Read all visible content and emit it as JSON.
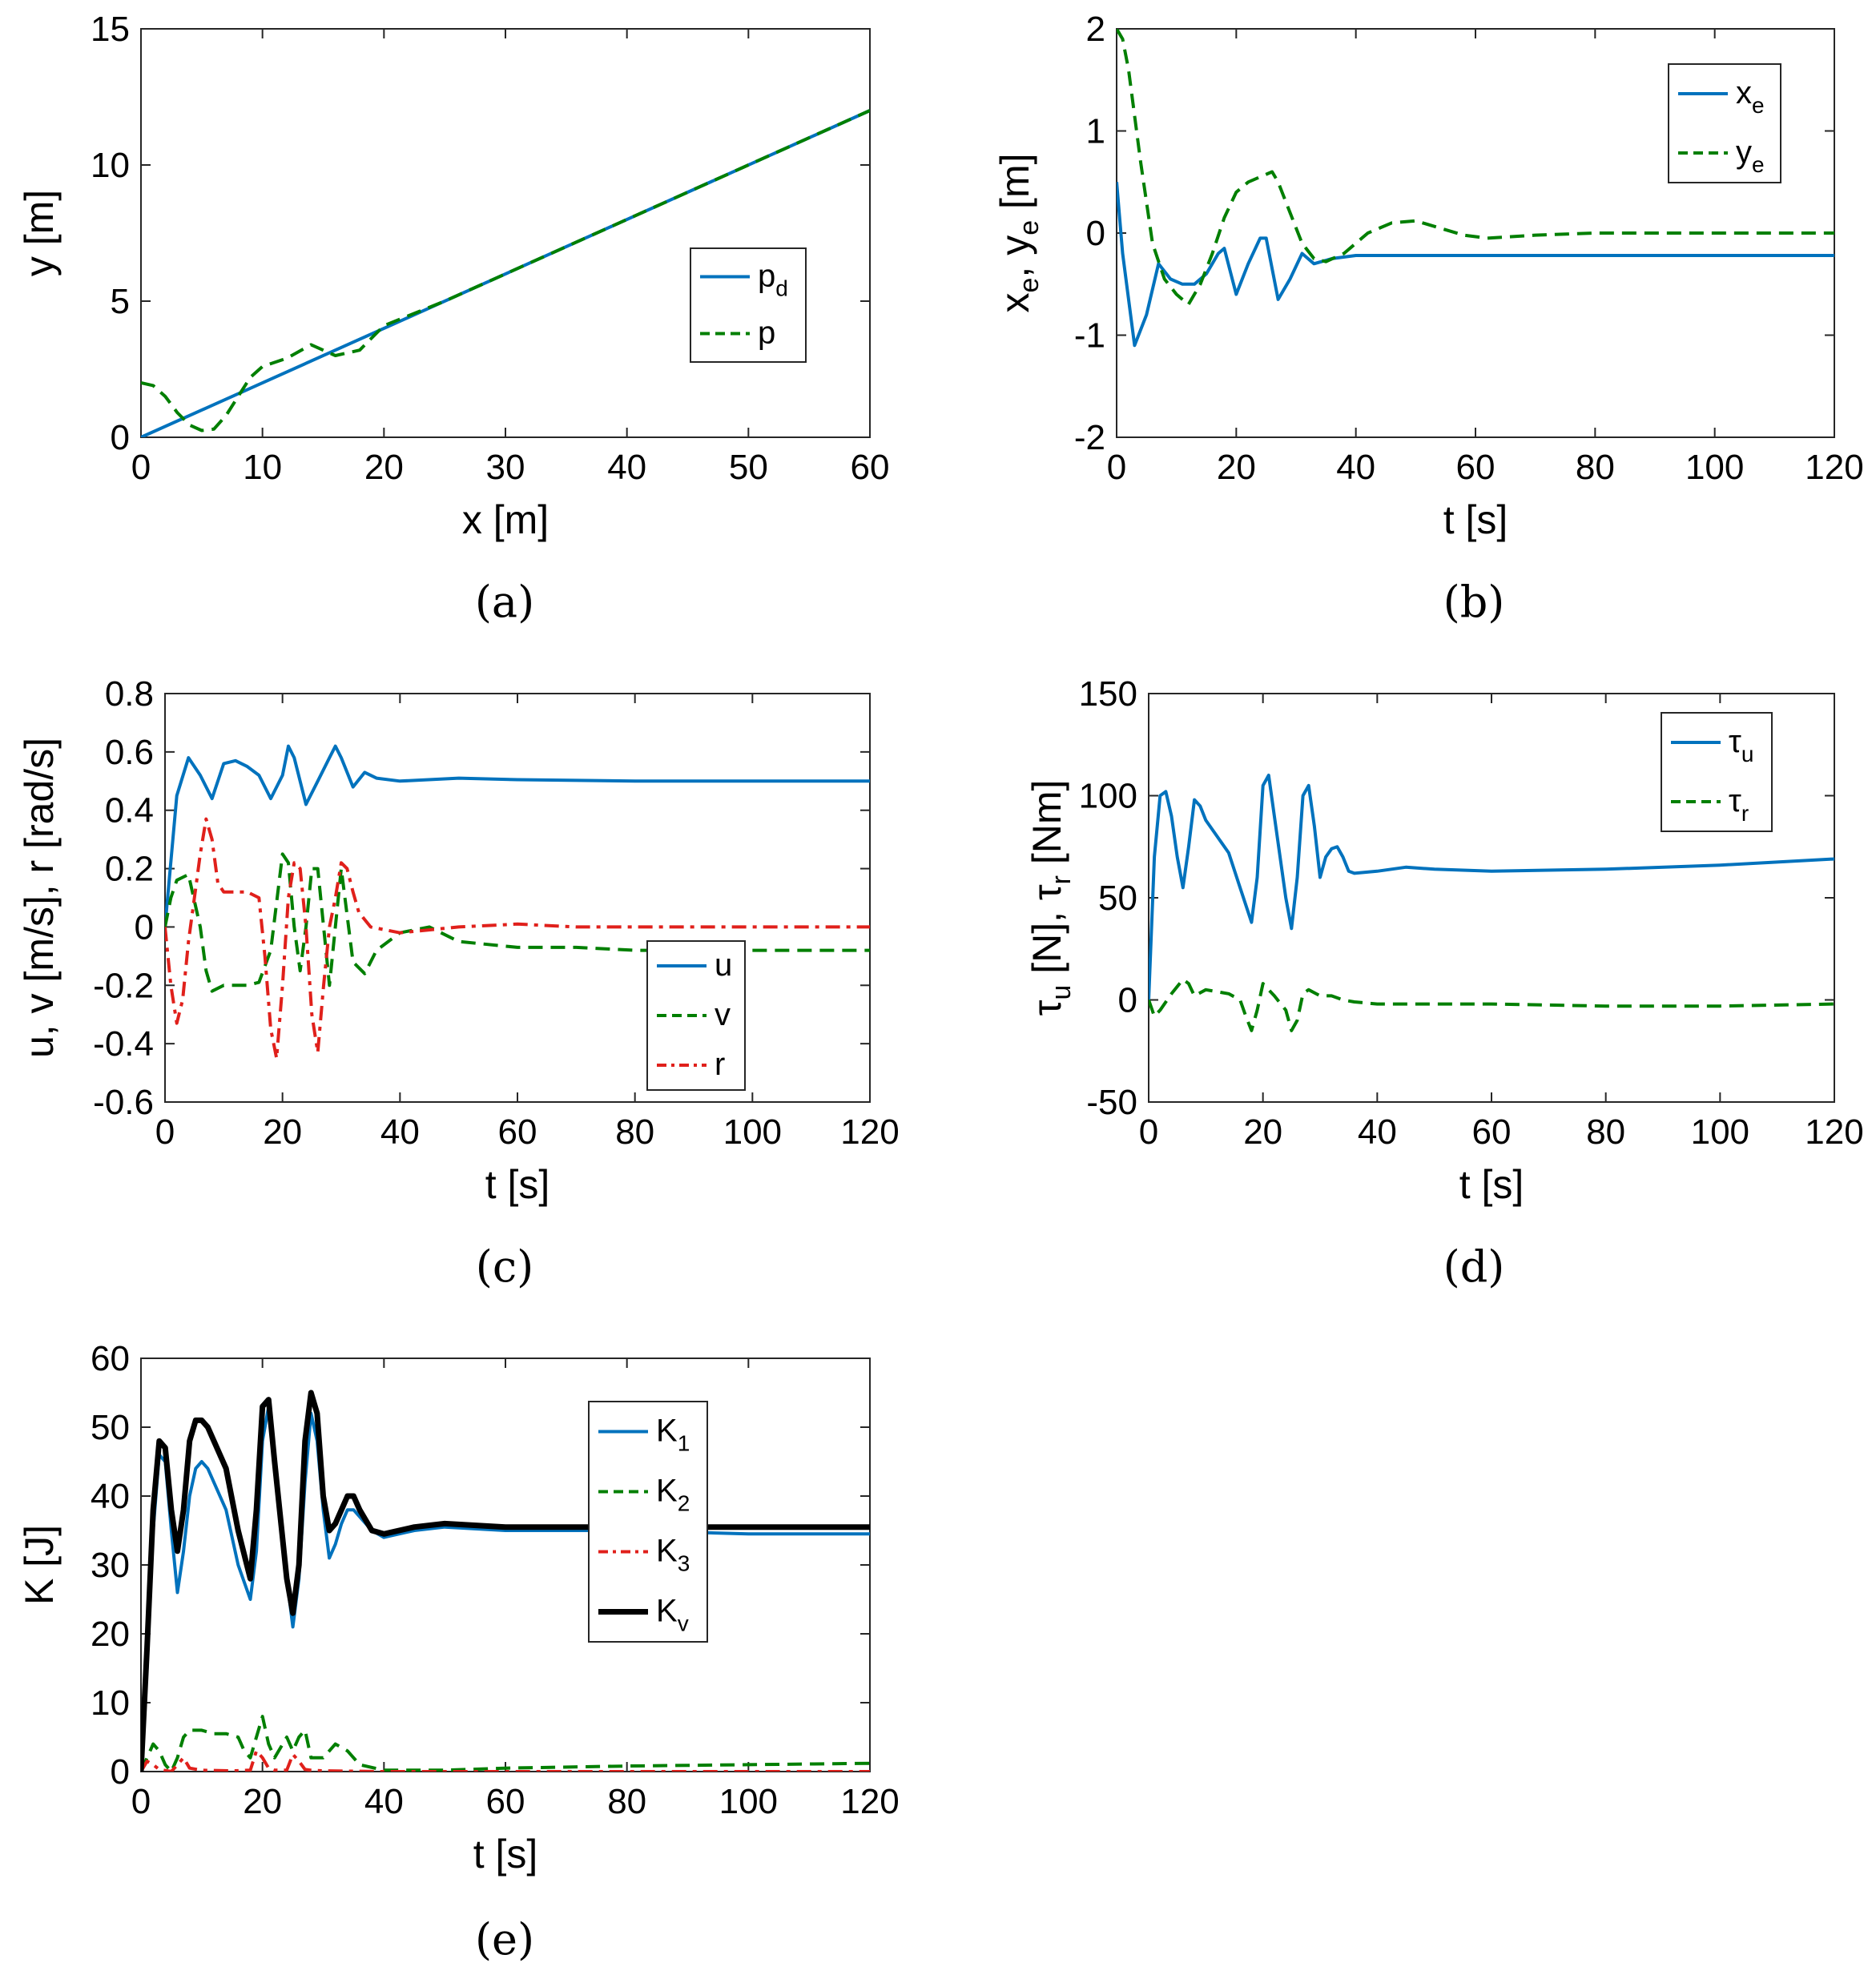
{
  "chart_data": [
    {
      "id": "a",
      "panel_label": "(a)",
      "type": "line",
      "xlabel": "x [m]",
      "ylabel": "y [m]",
      "xlim": [
        0,
        60
      ],
      "ylim": [
        0,
        15
      ],
      "xticks": [
        0,
        10,
        20,
        30,
        40,
        50,
        60
      ],
      "yticks": [
        0,
        5,
        10,
        15
      ],
      "legend_position": "center-right",
      "series": [
        {
          "name": "p_d",
          "label": "p",
          "sub": "d",
          "color": "#0072BD",
          "style": "solid",
          "x": [
            0,
            60
          ],
          "y": [
            0,
            12
          ]
        },
        {
          "name": "p",
          "label": "p",
          "sub": "",
          "color": "#007F00",
          "style": "dashed",
          "x": [
            0,
            1,
            2,
            3,
            4,
            5,
            6,
            7,
            8,
            9,
            10,
            12,
            14,
            16,
            18,
            20,
            25,
            30,
            40,
            50,
            60
          ],
          "y": [
            2.0,
            1.9,
            1.5,
            0.9,
            0.45,
            0.25,
            0.3,
            0.8,
            1.5,
            2.2,
            2.6,
            2.9,
            3.4,
            3.0,
            3.2,
            4.1,
            5.0,
            6.0,
            8.0,
            10.0,
            12.0
          ]
        }
      ]
    },
    {
      "id": "b",
      "panel_label": "(b)",
      "type": "line",
      "xlabel": "t [s]",
      "ylabel": "x_e, y_e [m]",
      "xlim": [
        0,
        120
      ],
      "ylim": [
        -2,
        2
      ],
      "xticks": [
        0,
        20,
        40,
        60,
        80,
        100,
        120
      ],
      "yticks": [
        -2,
        -1,
        0,
        1,
        2
      ],
      "legend_position": "top-right",
      "series": [
        {
          "name": "x_e",
          "label": "x",
          "sub": "e",
          "color": "#0072BD",
          "style": "solid",
          "x": [
            0,
            1,
            3,
            5,
            7,
            9,
            11,
            13,
            15,
            17,
            18,
            20,
            22,
            24,
            25,
            27,
            29,
            31,
            33,
            36,
            40,
            60,
            80,
            100,
            120
          ],
          "y": [
            0.5,
            -0.2,
            -1.1,
            -0.8,
            -0.3,
            -0.45,
            -0.5,
            -0.5,
            -0.4,
            -0.2,
            -0.15,
            -0.6,
            -0.3,
            -0.05,
            -0.05,
            -0.65,
            -0.45,
            -0.2,
            -0.3,
            -0.25,
            -0.22,
            -0.22,
            -0.22,
            -0.22,
            -0.22
          ]
        },
        {
          "name": "y_e",
          "label": "y",
          "sub": "e",
          "color": "#007F00",
          "style": "dashed",
          "x": [
            0,
            1,
            2,
            4,
            6,
            8,
            10,
            12,
            14,
            16,
            18,
            20,
            22,
            24,
            26,
            27,
            29,
            31,
            33,
            35,
            38,
            42,
            46,
            50,
            54,
            58,
            62,
            70,
            80,
            100,
            120
          ],
          "y": [
            2.0,
            1.9,
            1.6,
            0.7,
            -0.1,
            -0.45,
            -0.6,
            -0.7,
            -0.5,
            -0.2,
            0.15,
            0.4,
            0.5,
            0.55,
            0.6,
            0.5,
            0.2,
            -0.1,
            -0.25,
            -0.28,
            -0.2,
            0.0,
            0.1,
            0.12,
            0.05,
            -0.02,
            -0.05,
            -0.02,
            0.0,
            0.0,
            0.0
          ]
        }
      ]
    },
    {
      "id": "c",
      "panel_label": "(c)",
      "type": "line",
      "xlabel": "t [s]",
      "ylabel": "u, v [m/s], r [rad/s]",
      "xlim": [
        0,
        120
      ],
      "ylim": [
        -0.6,
        0.8
      ],
      "xticks": [
        0,
        20,
        40,
        60,
        80,
        100,
        120
      ],
      "yticks": [
        -0.6,
        -0.4,
        -0.2,
        0,
        0.2,
        0.4,
        0.6,
        0.8
      ],
      "ytick_labels": [
        "-0.6",
        "-0.4",
        "-0.2",
        "0",
        "0.2",
        "0.4",
        "0.6",
        "0.8"
      ],
      "legend_position": "bottom-right",
      "series": [
        {
          "name": "u",
          "label": "u",
          "sub": "",
          "color": "#0072BD",
          "style": "solid",
          "x": [
            0,
            2,
            4,
            6,
            8,
            10,
            12,
            14,
            16,
            18,
            20,
            21,
            22,
            24,
            26,
            28,
            29,
            30,
            32,
            34,
            36,
            40,
            50,
            60,
            80,
            100,
            120
          ],
          "y": [
            0.0,
            0.45,
            0.58,
            0.52,
            0.44,
            0.56,
            0.57,
            0.55,
            0.52,
            0.44,
            0.52,
            0.62,
            0.58,
            0.42,
            0.5,
            0.58,
            0.62,
            0.58,
            0.48,
            0.53,
            0.51,
            0.5,
            0.51,
            0.505,
            0.5,
            0.5,
            0.5
          ]
        },
        {
          "name": "v",
          "label": "v",
          "sub": "",
          "color": "#007F00",
          "style": "dashed",
          "x": [
            0,
            1,
            2,
            4,
            6,
            7,
            8,
            10,
            12,
            14,
            16,
            18,
            20,
            21,
            22,
            23,
            24,
            25,
            26,
            27,
            28,
            30,
            32,
            34,
            36,
            40,
            45,
            50,
            60,
            70,
            80,
            100,
            120
          ],
          "y": [
            0.0,
            0.1,
            0.16,
            0.18,
            0.0,
            -0.15,
            -0.22,
            -0.2,
            -0.2,
            -0.2,
            -0.19,
            -0.08,
            0.25,
            0.22,
            0.0,
            -0.15,
            0.0,
            0.2,
            0.2,
            0.0,
            -0.2,
            0.2,
            -0.12,
            -0.16,
            -0.08,
            -0.02,
            0.0,
            -0.05,
            -0.07,
            -0.07,
            -0.08,
            -0.08,
            -0.08
          ]
        },
        {
          "name": "r",
          "label": "r",
          "sub": "",
          "color": "#E0201B",
          "style": "dashdot",
          "x": [
            0,
            1,
            2,
            3,
            4,
            5,
            6,
            7,
            8,
            9,
            10,
            12,
            14,
            16,
            17,
            18,
            19,
            20,
            21,
            22,
            23,
            24,
            25,
            26,
            27,
            28,
            29,
            30,
            31,
            32,
            33,
            35,
            40,
            50,
            60,
            70,
            80,
            100,
            120
          ],
          "y": [
            0.0,
            -0.2,
            -0.33,
            -0.25,
            -0.05,
            0.1,
            0.25,
            0.37,
            0.3,
            0.15,
            0.12,
            0.12,
            0.12,
            0.1,
            -0.1,
            -0.35,
            -0.45,
            -0.2,
            0.1,
            0.22,
            0.2,
            0.0,
            -0.3,
            -0.43,
            -0.2,
            0.0,
            0.1,
            0.22,
            0.2,
            0.12,
            0.05,
            0.0,
            -0.02,
            0.0,
            0.01,
            0.0,
            0.0,
            0.0,
            0.0
          ]
        }
      ]
    },
    {
      "id": "d",
      "panel_label": "(d)",
      "type": "line",
      "xlabel": "t [s]",
      "ylabel": "τ_u [N], τ_r [Nm]",
      "xlim": [
        0,
        120
      ],
      "ylim": [
        -50,
        150
      ],
      "xticks": [
        0,
        20,
        40,
        60,
        80,
        100,
        120
      ],
      "yticks": [
        -50,
        0,
        50,
        100,
        150
      ],
      "legend_position": "top-right",
      "series": [
        {
          "name": "τ_u",
          "label": "τ",
          "sub": "u",
          "color": "#0072BD",
          "style": "solid",
          "x": [
            0,
            1,
            2,
            3,
            4,
            5,
            6,
            7,
            8,
            9,
            10,
            12,
            14,
            16,
            18,
            19,
            20,
            21,
            22,
            24,
            25,
            26,
            27,
            28,
            29,
            30,
            31,
            32,
            33,
            34,
            35,
            36,
            40,
            45,
            50,
            60,
            80,
            100,
            120
          ],
          "y": [
            0,
            70,
            100,
            102,
            90,
            70,
            55,
            75,
            98,
            95,
            88,
            80,
            72,
            55,
            38,
            60,
            105,
            110,
            90,
            50,
            35,
            60,
            100,
            105,
            85,
            60,
            70,
            74,
            75,
            70,
            63,
            62,
            63,
            65,
            64,
            63,
            64,
            66,
            69
          ]
        },
        {
          "name": "τ_r",
          "label": "τ",
          "sub": "r",
          "color": "#007F00",
          "style": "dashed",
          "x": [
            0,
            1,
            2,
            4,
            6,
            7,
            8,
            10,
            12,
            14,
            16,
            17,
            18,
            19,
            20,
            21,
            22,
            24,
            25,
            26,
            27,
            28,
            30,
            32,
            34,
            36,
            40,
            60,
            80,
            100,
            120
          ],
          "y": [
            0,
            -8,
            -5,
            3,
            10,
            8,
            2,
            5,
            4,
            3,
            0,
            -8,
            -15,
            -5,
            8,
            5,
            2,
            -5,
            -15,
            -10,
            3,
            5,
            2,
            2,
            0,
            -1,
            -2,
            -2,
            -3,
            -3,
            -2
          ]
        }
      ]
    },
    {
      "id": "e",
      "panel_label": "(e)",
      "type": "line",
      "xlabel": "t [s]",
      "ylabel": "K [J]",
      "xlim": [
        0,
        120
      ],
      "ylim": [
        0,
        60
      ],
      "xticks": [
        0,
        20,
        40,
        60,
        80,
        100,
        120
      ],
      "yticks": [
        0,
        10,
        20,
        30,
        40,
        50,
        60
      ],
      "legend_position": "center-right",
      "series": [
        {
          "name": "K_1",
          "label": "K",
          "sub": "1",
          "color": "#0072BD",
          "style": "solid",
          "x": [
            0,
            1,
            2,
            3,
            4,
            5,
            6,
            7,
            8,
            9,
            10,
            11,
            12,
            14,
            16,
            18,
            19,
            20,
            21,
            22,
            24,
            25,
            26,
            27,
            28,
            29,
            30,
            31,
            32,
            33,
            34,
            35,
            36,
            38,
            40,
            45,
            50,
            60,
            80,
            100,
            120
          ],
          "y": [
            0,
            15,
            35,
            46,
            45,
            35,
            26,
            32,
            40,
            44,
            45,
            44,
            42,
            38,
            30,
            25,
            32,
            48,
            53,
            45,
            28,
            21,
            28,
            42,
            52,
            48,
            38,
            31,
            33,
            36,
            38,
            38,
            37,
            35,
            34,
            35,
            35.5,
            35,
            35,
            34.5,
            34.5
          ]
        },
        {
          "name": "K_2",
          "label": "K",
          "sub": "2",
          "color": "#007F00",
          "style": "dashed",
          "x": [
            0,
            1,
            2,
            3,
            4,
            5,
            6,
            7,
            8,
            9,
            10,
            12,
            14,
            16,
            17,
            18,
            19,
            20,
            21,
            22,
            24,
            25,
            26,
            27,
            28,
            30,
            32,
            34,
            36,
            40,
            50,
            60,
            80,
            100,
            120
          ],
          "y": [
            0,
            2,
            4,
            3,
            1,
            0,
            2,
            5,
            6,
            6,
            6,
            5.5,
            5.5,
            5,
            3,
            2,
            5,
            8,
            4,
            2,
            5,
            3,
            5,
            6,
            2,
            2,
            4,
            3,
            1,
            0.2,
            0.2,
            0.5,
            0.8,
            1.0,
            1.2
          ]
        },
        {
          "name": "K_3",
          "label": "K",
          "sub": "3",
          "color": "#E0201B",
          "style": "dashdot",
          "x": [
            0,
            1,
            2,
            3,
            5,
            6,
            7,
            8,
            10,
            15,
            18,
            19,
            20,
            21,
            22,
            24,
            25,
            26,
            27,
            28,
            30,
            40,
            120
          ],
          "y": [
            0,
            1.5,
            1.0,
            0.3,
            0,
            1.0,
            2.0,
            0.5,
            0.2,
            0.1,
            0.2,
            3,
            2,
            0.5,
            0.2,
            0.2,
            2.5,
            1.5,
            0.3,
            0.2,
            0.1,
            0,
            0
          ]
        },
        {
          "name": "K_v",
          "label": "K",
          "sub": "v",
          "color": "#000000",
          "style": "solid-thick",
          "x": [
            0,
            1,
            2,
            3,
            4,
            5,
            6,
            7,
            8,
            9,
            10,
            11,
            12,
            14,
            16,
            18,
            19,
            20,
            21,
            22,
            24,
            25,
            26,
            27,
            28,
            29,
            30,
            31,
            32,
            33,
            34,
            35,
            36,
            38,
            40,
            45,
            50,
            60,
            80,
            100,
            120
          ],
          "y": [
            0,
            18,
            38,
            48,
            47,
            38,
            32,
            38,
            48,
            51,
            51,
            50,
            48,
            44,
            35,
            28,
            38,
            53,
            54,
            45,
            28,
            23,
            30,
            48,
            55,
            52,
            40,
            35,
            36,
            38,
            40,
            40,
            38,
            35,
            34.5,
            35.5,
            36,
            35.5,
            35.5,
            35.5,
            35.5
          ]
        }
      ]
    }
  ]
}
